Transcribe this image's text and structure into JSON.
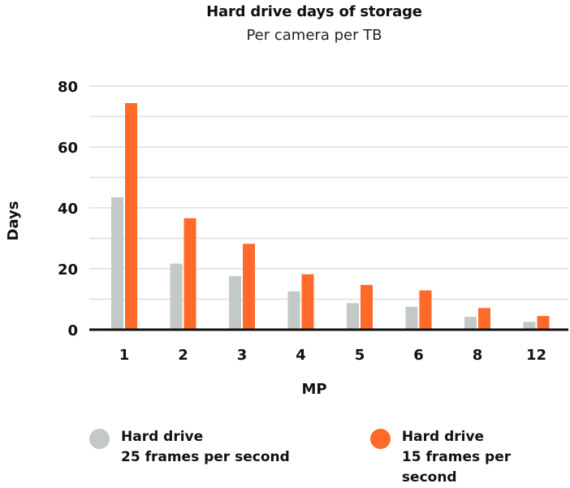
{
  "chart_data": {
    "type": "bar",
    "title": "Hard drive days of storage",
    "subtitle": "Per camera per TB",
    "xlabel": "MP",
    "ylabel": "Days",
    "categories": [
      "1",
      "2",
      "3",
      "4",
      "5",
      "6",
      "8",
      "12"
    ],
    "yticks": [
      "0",
      "20",
      "40",
      "60",
      "80"
    ],
    "ylim": [
      0,
      80
    ],
    "grid": true,
    "legend_position": "bottom",
    "series": [
      {
        "name": "Hard drive 25 frames per second",
        "legend_line1": "Hard drive",
        "legend_line2": "25 frames per second",
        "color": "#c3c9c7",
        "values": [
          43.5,
          21.7,
          17.6,
          12.6,
          8.7,
          7.5,
          4.2,
          2.6
        ]
      },
      {
        "name": "Hard drive 15 frames per second",
        "legend_line1": "Hard drive",
        "legend_line2": "15 frames per second",
        "color": "#ff6a2a",
        "values": [
          74.4,
          36.6,
          28.2,
          18.2,
          14.7,
          12.9,
          7.1,
          4.5
        ]
      }
    ]
  }
}
